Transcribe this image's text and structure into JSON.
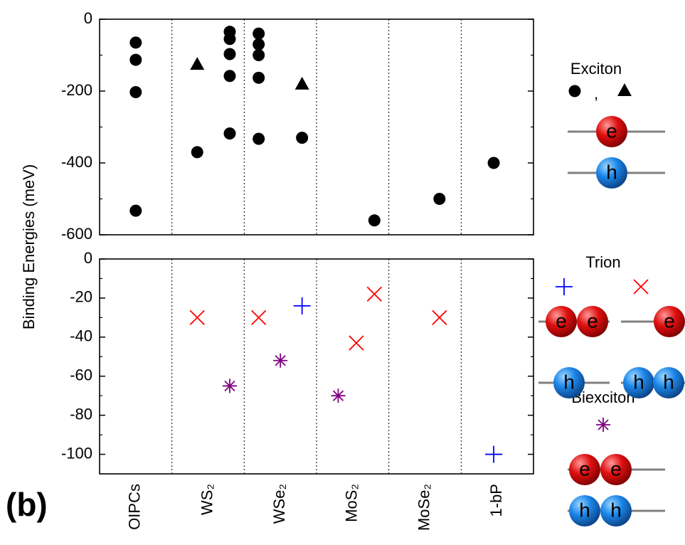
{
  "y_label": "Binding Energies (meV)",
  "panel_label": "(b)",
  "legend": {
    "exciton": "Exciton",
    "comma": ",",
    "trion": "Trion",
    "biexciton": "Biexciton",
    "electron": "e",
    "hole": "h"
  },
  "chart_data": [
    {
      "type": "scatter",
      "xlim": [
        -0.5,
        5.5
      ],
      "ylim": [
        -600,
        0
      ],
      "yticks": [
        0,
        -200,
        -400,
        -600
      ],
      "series": [
        {
          "marker": "circle",
          "color": "#000000",
          "x": [
            0,
            0,
            0,
            0,
            0.85,
            1.3,
            1.3,
            1.3,
            1.3,
            1.3,
            1.7,
            1.7,
            1.7,
            1.7,
            1.7,
            2.3,
            3.3,
            4.2,
            4.95
          ],
          "values": [
            -65,
            -113,
            -203,
            -533,
            -370,
            -35,
            -55,
            -97,
            -158,
            -318,
            -40,
            -70,
            -100,
            -163,
            -333,
            -330,
            -560,
            -500,
            -400
          ]
        },
        {
          "marker": "triangle",
          "color": "#000000",
          "x": [
            0.85,
            2.3
          ],
          "values": [
            -125,
            -180
          ]
        }
      ]
    },
    {
      "type": "scatter",
      "xlim": [
        -0.5,
        5.5
      ],
      "ylim": [
        -110,
        0
      ],
      "yticks": [
        0,
        -20,
        -40,
        -60,
        -80,
        -100
      ],
      "categories": [
        "OIPCs",
        "WS₂",
        "WSe₂",
        "MoS₂",
        "MoSe₂",
        "1-bP"
      ],
      "series": [
        {
          "marker": "plus",
          "color": "#0000ff",
          "x": [
            2.3,
            4.95
          ],
          "values": [
            -24,
            -100
          ]
        },
        {
          "marker": "cross",
          "color": "#ff0000",
          "x": [
            0.85,
            1.7,
            3.05,
            3.3,
            4.2
          ],
          "values": [
            -30,
            -30,
            -43,
            -18,
            -30
          ]
        },
        {
          "marker": "asterisk",
          "color": "#800080",
          "x": [
            1.3,
            2.0,
            2.8
          ],
          "values": [
            -65,
            -52,
            -70
          ]
        }
      ]
    }
  ]
}
